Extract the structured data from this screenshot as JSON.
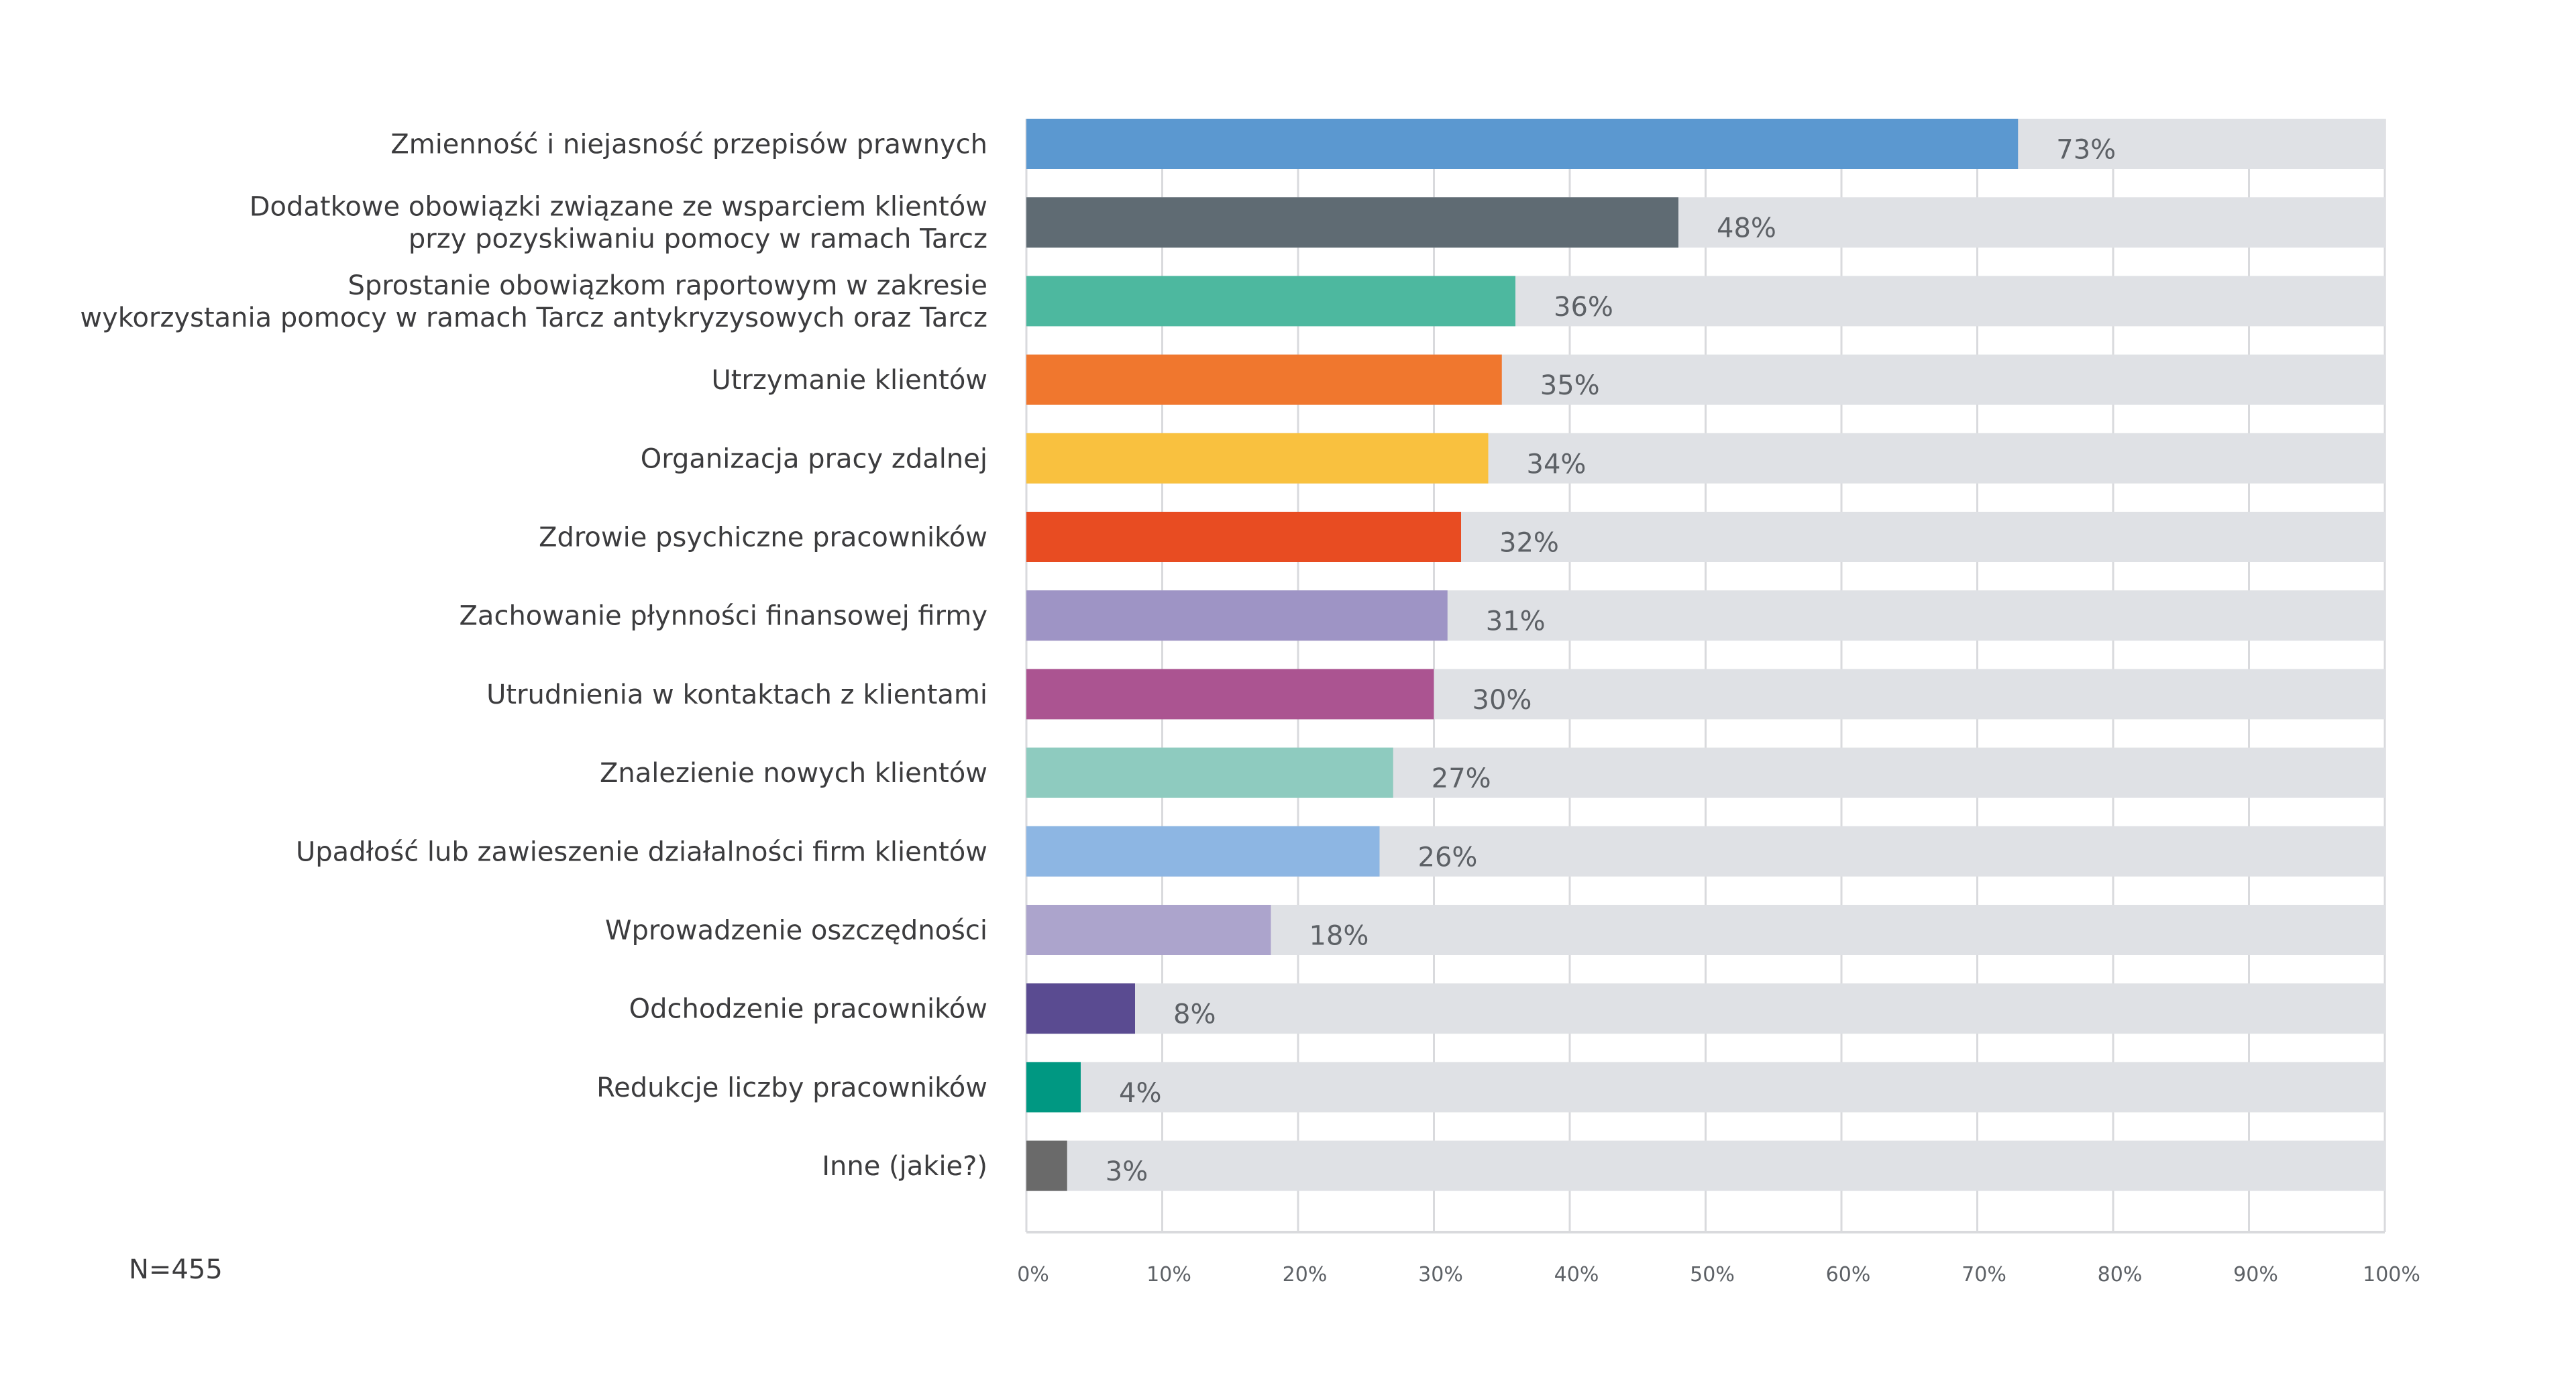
{
  "chart_data": {
    "type": "bar",
    "orientation": "horizontal",
    "title": "",
    "xlabel": "",
    "ylabel": "",
    "xlim": [
      0,
      100
    ],
    "x_ticks": [
      "0%",
      "10%",
      "20%",
      "30%",
      "40%",
      "50%",
      "60%",
      "70%",
      "80%",
      "90%",
      "100%"
    ],
    "grid": true,
    "background_track_color": "#dfe1e5",
    "grid_color": "#d9dadd",
    "categories": [
      [
        "Zmienność i niejasność przepisów prawnych"
      ],
      [
        "Dodatkowe obowiązki związane ze wsparciem klientów",
        "przy pozyskiwaniu pomocy w ramach Tarcz"
      ],
      [
        "Sprostanie obowiązkom raportowym w zakresie",
        "wykorzystania pomocy w ramach Tarcz antykryzysowych oraz Tarcz"
      ],
      [
        "Utrzymanie klientów"
      ],
      [
        "Organizacja pracy zdalnej"
      ],
      [
        "Zdrowie psychiczne pracowników"
      ],
      [
        "Zachowanie płynności finansowej firmy"
      ],
      [
        "Utrudnienia w kontaktach z klientami"
      ],
      [
        "Znalezienie nowych klientów"
      ],
      [
        "Upadłość lub zawieszenie działalności firm klientów"
      ],
      [
        "Wprowadzenie oszczędności"
      ],
      [
        "Odchodzenie pracowników"
      ],
      [
        "Redukcje liczby pracowników"
      ],
      [
        "Inne (jakie?)"
      ]
    ],
    "values": [
      73,
      48,
      36,
      35,
      34,
      32,
      31,
      30,
      27,
      26,
      18,
      8,
      4,
      3
    ],
    "value_labels": [
      "73%",
      "48%",
      "36%",
      "35%",
      "34%",
      "32%",
      "31%",
      "30%",
      "27%",
      "26%",
      "18%",
      "8%",
      "4%",
      "3%"
    ],
    "colors": [
      "#5b98d0",
      "#5f6b73",
      "#4db89f",
      "#f0772e",
      "#f9c13f",
      "#e84c22",
      "#9e94c5",
      "#ab5491",
      "#8ecbbf",
      "#8db6e3",
      "#aca4cc",
      "#5a4b91",
      "#009882",
      "#6a6a6a"
    ],
    "footnote": "N=455"
  }
}
